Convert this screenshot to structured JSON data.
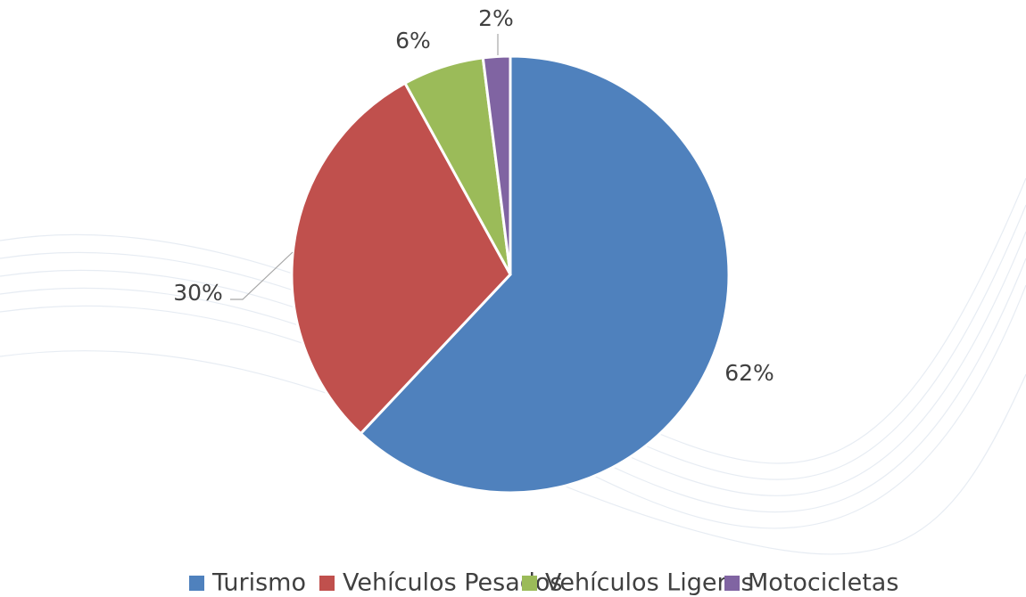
{
  "chart_data": {
    "type": "pie",
    "categories": [
      "Turismo",
      "Vehículos Pesados",
      "Vehículos Ligeros",
      "Motocicletas"
    ],
    "values": [
      62,
      30,
      6,
      2
    ],
    "value_labels": [
      "62%",
      "30%",
      "6%",
      "2%"
    ],
    "colors": [
      "#4f81bd",
      "#c0504d",
      "#9bbb59",
      "#8064a2"
    ],
    "legend": "bottom"
  }
}
